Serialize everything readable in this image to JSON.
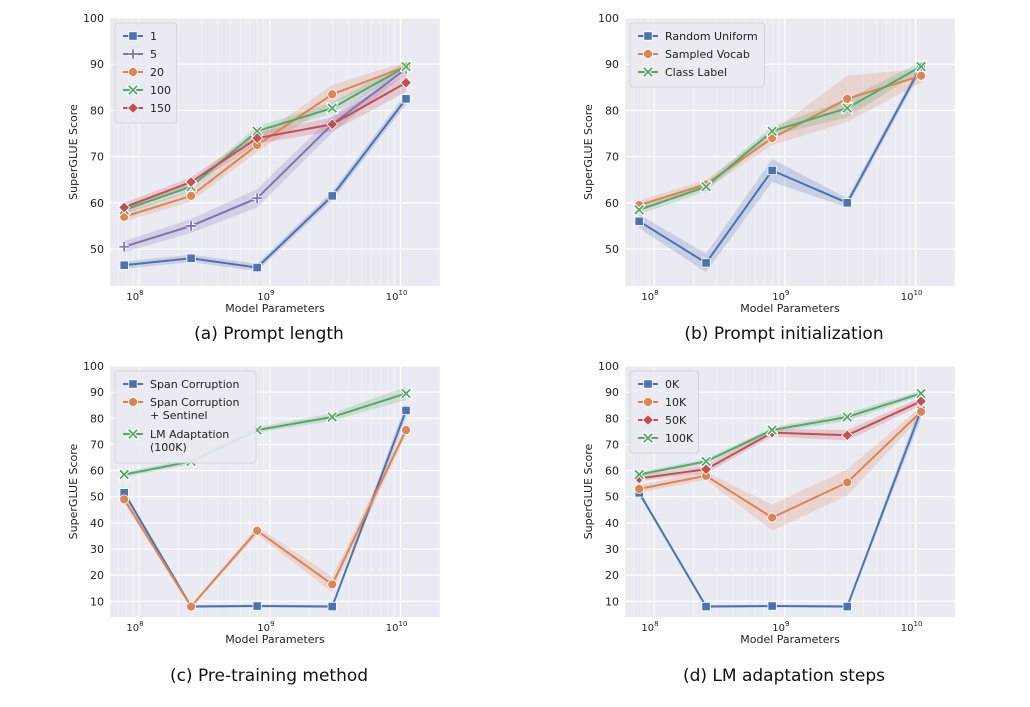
{
  "colors": {
    "blue": "#4c72b0",
    "orange": "#dd8452",
    "green": "#55a868",
    "red": "#c44e52",
    "purple": "#8172b3",
    "plot_bg": "#eaeaf2",
    "grid": "#ffffff"
  },
  "chart_data": [
    {
      "type": "line",
      "caption": "(a) Prompt length",
      "xlabel": "Model Parameters",
      "ylabel": "SuperGLUE Score",
      "xscale": "log",
      "xlim": [
        60000000,
        20000000000
      ],
      "ylim": [
        42,
        100
      ],
      "yticks": [
        50,
        60,
        70,
        80,
        90,
        100
      ],
      "xticks": [
        {
          "value": 100000000,
          "base": "10",
          "exp": "8"
        },
        {
          "value": 1000000000,
          "base": "10",
          "exp": "9"
        },
        {
          "value": 10000000000,
          "base": "10",
          "exp": "10"
        }
      ],
      "grid": true,
      "legend_position": "top-left",
      "x": [
        77000000,
        250000000,
        800000000,
        3000000000,
        11000000000
      ],
      "series": [
        {
          "name": "1",
          "color": "blue",
          "marker": "square",
          "values": [
            46.5,
            48.0,
            46.0,
            61.5,
            82.5
          ],
          "band": [
            0.8,
            0.8,
            0.8,
            1.0,
            1.2
          ]
        },
        {
          "name": "5",
          "color": "purple",
          "marker": "plus",
          "values": [
            50.5,
            55.0,
            61.0,
            77.0,
            89.0
          ],
          "band": [
            1.2,
            1.5,
            2.0,
            1.8,
            1.0
          ]
        },
        {
          "name": "20",
          "color": "orange",
          "marker": "circle",
          "values": [
            57.0,
            61.5,
            72.5,
            83.5,
            89.5
          ],
          "band": [
            1.0,
            1.2,
            1.5,
            2.0,
            1.0
          ]
        },
        {
          "name": "100",
          "color": "green",
          "marker": "x",
          "values": [
            58.5,
            63.5,
            75.5,
            80.5,
            89.5
          ],
          "band": [
            1.0,
            1.0,
            1.0,
            1.2,
            1.0
          ]
        },
        {
          "name": "150",
          "color": "red",
          "marker": "diamond",
          "values": [
            59.0,
            64.5,
            74.0,
            77.0,
            86.0
          ],
          "band": [
            1.0,
            1.0,
            1.2,
            1.5,
            2.0
          ]
        }
      ]
    },
    {
      "type": "line",
      "caption": "(b) Prompt initialization",
      "xlabel": "Model Parameters",
      "ylabel": "SuperGLUE Score",
      "xscale": "log",
      "xlim": [
        60000000,
        20000000000
      ],
      "ylim": [
        42,
        100
      ],
      "yticks": [
        50,
        60,
        70,
        80,
        90,
        100
      ],
      "xticks": [
        {
          "value": 100000000,
          "base": "10",
          "exp": "8"
        },
        {
          "value": 1000000000,
          "base": "10",
          "exp": "9"
        },
        {
          "value": 10000000000,
          "base": "10",
          "exp": "10"
        }
      ],
      "grid": true,
      "legend_position": "top-left",
      "x": [
        77000000,
        250000000,
        800000000,
        3000000000,
        11000000000
      ],
      "series": [
        {
          "name": "Random Uniform",
          "color": "blue",
          "marker": "square",
          "values": [
            56.0,
            47.0,
            67.0,
            60.0,
            89.5
          ],
          "band": [
            1.5,
            2.0,
            2.5,
            1.0,
            1.0
          ]
        },
        {
          "name": "Sampled Vocab",
          "color": "orange",
          "marker": "circle",
          "values": [
            59.5,
            64.0,
            74.0,
            82.5,
            87.5
          ],
          "band": [
            1.0,
            1.0,
            1.5,
            5.0,
            1.5
          ]
        },
        {
          "name": "Class Label",
          "color": "green",
          "marker": "x",
          "values": [
            58.5,
            63.5,
            75.5,
            80.5,
            89.5
          ],
          "band": [
            1.0,
            1.0,
            1.0,
            2.0,
            1.0
          ]
        }
      ]
    },
    {
      "type": "line",
      "caption": "(c) Pre-training method",
      "xlabel": "Model Parameters",
      "ylabel": "SuperGLUE Score",
      "xscale": "log",
      "xlim": [
        60000000,
        20000000000
      ],
      "ylim": [
        4,
        100
      ],
      "yticks": [
        10,
        20,
        30,
        40,
        50,
        60,
        70,
        80,
        90,
        100
      ],
      "xticks": [
        {
          "value": 100000000,
          "base": "10",
          "exp": "8"
        },
        {
          "value": 1000000000,
          "base": "10",
          "exp": "9"
        },
        {
          "value": 10000000000,
          "base": "10",
          "exp": "10"
        }
      ],
      "grid": true,
      "legend_position": "top-left",
      "x": [
        77000000,
        250000000,
        800000000,
        3000000000,
        11000000000
      ],
      "series": [
        {
          "name": "Span Corruption",
          "color": "blue",
          "marker": "square",
          "values": [
            51.5,
            8.0,
            8.2,
            8.0,
            83.0
          ],
          "band": [
            1.0,
            0.5,
            0.5,
            0.5,
            3.0
          ]
        },
        {
          "name": "Span Corruption\n+ Sentinel",
          "color": "orange",
          "marker": "circle",
          "values": [
            49.0,
            8.0,
            37.0,
            16.5,
            75.5
          ],
          "band": [
            1.5,
            0.5,
            1.5,
            3.0,
            2.0
          ]
        },
        {
          "name": "LM Adaptation\n(100K)",
          "color": "green",
          "marker": "x",
          "values": [
            58.5,
            63.5,
            75.5,
            80.5,
            89.5
          ],
          "band": [
            1.0,
            1.0,
            1.0,
            1.5,
            2.5
          ]
        }
      ]
    },
    {
      "type": "line",
      "caption": "(d) LM adaptation steps",
      "xlabel": "Model Parameters",
      "ylabel": "SuperGLUE Score",
      "xscale": "log",
      "xlim": [
        60000000,
        20000000000
      ],
      "ylim": [
        4,
        100
      ],
      "yticks": [
        10,
        20,
        30,
        40,
        50,
        60,
        70,
        80,
        90,
        100
      ],
      "xticks": [
        {
          "value": 100000000,
          "base": "10",
          "exp": "8"
        },
        {
          "value": 1000000000,
          "base": "10",
          "exp": "9"
        },
        {
          "value": 10000000000,
          "base": "10",
          "exp": "10"
        }
      ],
      "grid": true,
      "legend_position": "top-left",
      "x": [
        77000000,
        250000000,
        800000000,
        3000000000,
        11000000000
      ],
      "series": [
        {
          "name": "0K",
          "color": "blue",
          "marker": "square",
          "values": [
            51.5,
            8.0,
            8.2,
            8.0,
            83.0
          ],
          "band": [
            1.0,
            0.5,
            0.5,
            0.5,
            3.0
          ]
        },
        {
          "name": "10K",
          "color": "orange",
          "marker": "circle",
          "values": [
            53.0,
            58.0,
            42.0,
            55.5,
            82.5
          ],
          "band": [
            1.5,
            1.5,
            5.0,
            5.0,
            2.0
          ]
        },
        {
          "name": "50K",
          "color": "red",
          "marker": "diamond",
          "values": [
            57.0,
            60.5,
            74.5,
            73.5,
            86.5
          ],
          "band": [
            1.0,
            1.5,
            1.5,
            2.0,
            1.5
          ]
        },
        {
          "name": "100K",
          "color": "green",
          "marker": "x",
          "values": [
            58.5,
            63.5,
            75.5,
            80.5,
            89.5
          ],
          "band": [
            1.0,
            1.0,
            1.0,
            1.5,
            1.0
          ]
        }
      ]
    }
  ]
}
